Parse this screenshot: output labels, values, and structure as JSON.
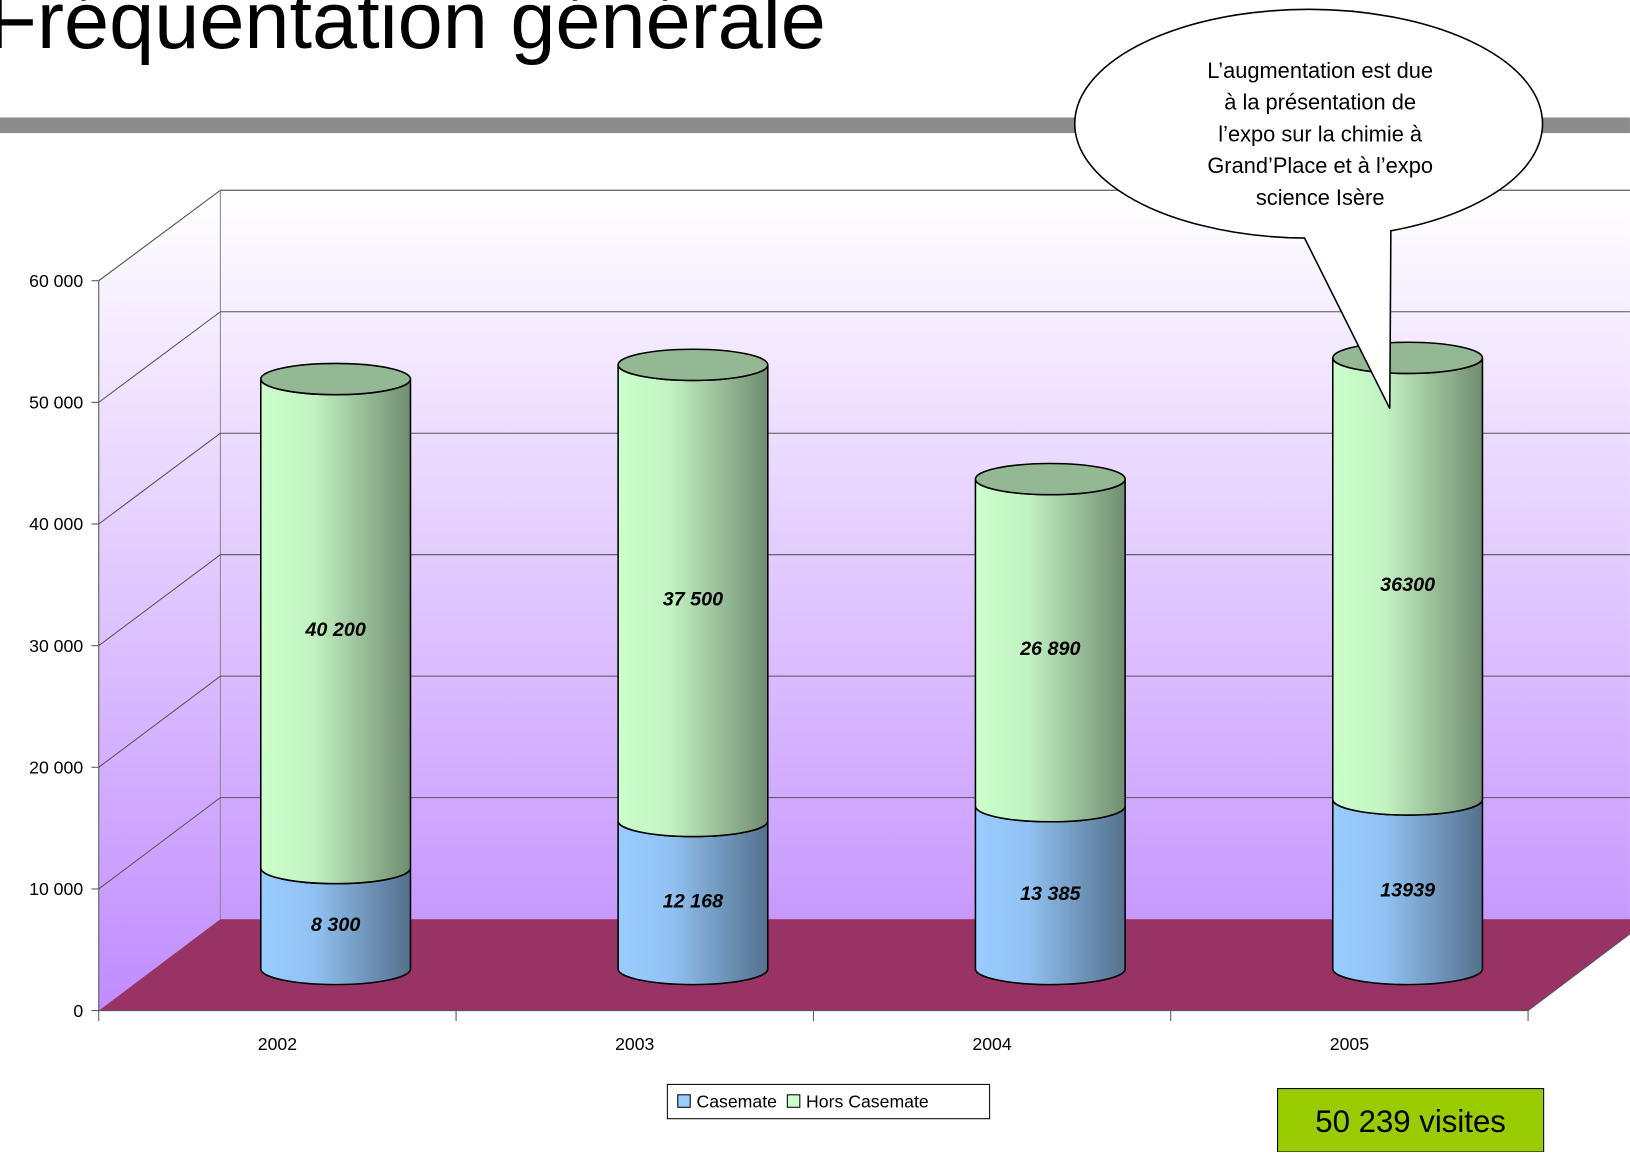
{
  "chart_data": {
    "type": "bar",
    "stacked": true,
    "title": "Fréquentation générale",
    "categories": [
      "2002",
      "2003",
      "2004",
      "2005"
    ],
    "series": [
      {
        "name": "Casemate",
        "color": "#99ccff",
        "values": [
          8300,
          12168,
          13385,
          13939
        ],
        "value_labels": [
          "8 300",
          "12 168",
          "13 385",
          "13939"
        ]
      },
      {
        "name": "Hors Casemate",
        "color": "#ccffcc",
        "values": [
          40200,
          37500,
          26890,
          36300
        ],
        "value_labels": [
          "40 200",
          "37 500",
          "26 890",
          "36300"
        ]
      }
    ],
    "ylim": [
      0,
      60000
    ],
    "yticks": [
      {
        "value": 0,
        "label": "0"
      },
      {
        "value": 10000,
        "label": "10 000"
      },
      {
        "value": 20000,
        "label": "20 000"
      },
      {
        "value": 30000,
        "label": "30 000"
      },
      {
        "value": 40000,
        "label": "40 000"
      },
      {
        "value": 50000,
        "label": "50 000"
      },
      {
        "value": 60000,
        "label": "60 000"
      }
    ],
    "grid": true,
    "legend": "bottom",
    "callout": [
      "L’augmentation est due",
      "à la présentation de",
      "l’expo sur la chimie à",
      "Grand’Place et à l’expo",
      "science Isère"
    ],
    "total_label": "50 239 visites"
  }
}
